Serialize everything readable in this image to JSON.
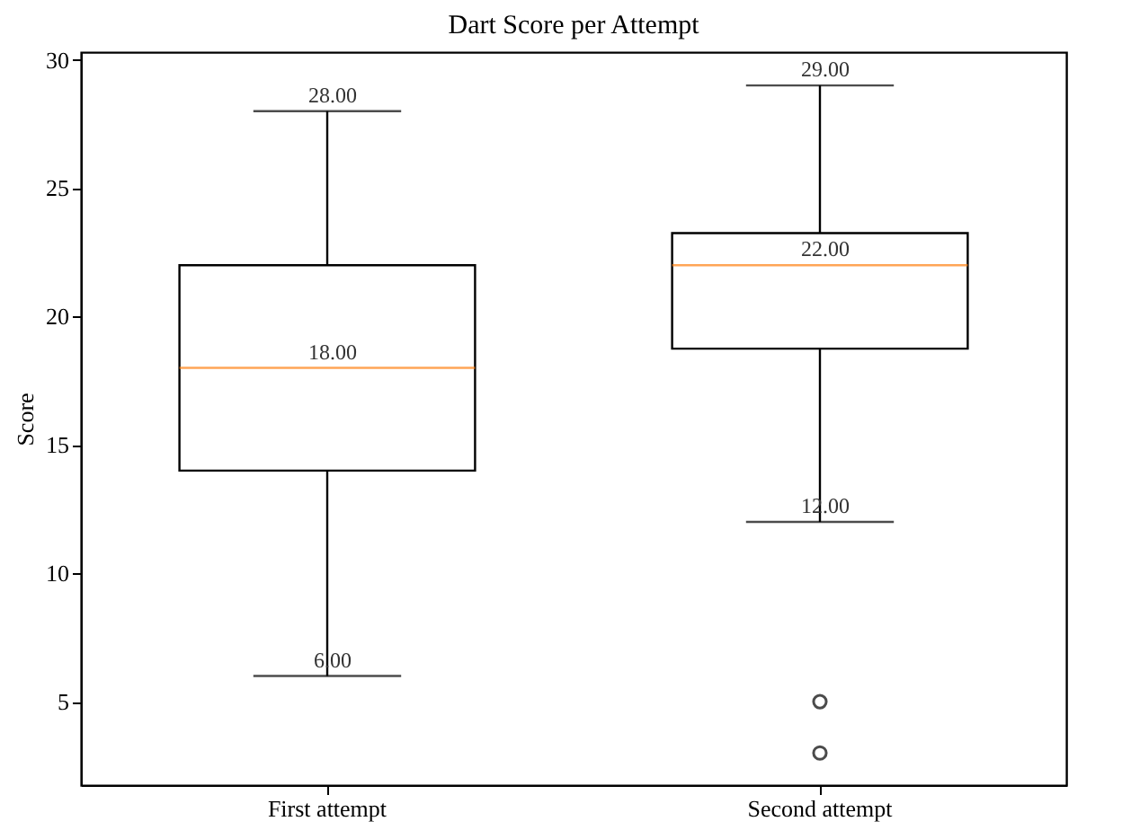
{
  "chart_data": {
    "type": "box",
    "title": "Dart Score per Attempt",
    "ylabel": "Score",
    "categories": [
      "First attempt",
      "Second attempt"
    ],
    "boxes": [
      {
        "low": 6,
        "q1": 14,
        "median": 18,
        "q3": 22,
        "high": 28
      },
      {
        "low": 12,
        "q1": 18.75,
        "median": 22,
        "q3": 23.25,
        "high": 29,
        "outliers": [
          5,
          3
        ]
      }
    ],
    "ylim": [
      1.75,
      30.3
    ],
    "yticks": [
      5,
      10,
      15,
      20,
      25,
      30
    ],
    "grid": false,
    "annotations": [
      {
        "text": "28.00",
        "x": "First attempt",
        "y": 28
      },
      {
        "text": "18.00",
        "x": "First attempt",
        "y": 18
      },
      {
        "text": "6.00",
        "x": "First attempt",
        "y": 6
      },
      {
        "text": "29.00",
        "x": "Second attempt",
        "y": 29
      },
      {
        "text": "22.00",
        "x": "Second attempt",
        "y": 22
      },
      {
        "text": "12.00",
        "x": "Second attempt",
        "y": 12
      }
    ]
  }
}
